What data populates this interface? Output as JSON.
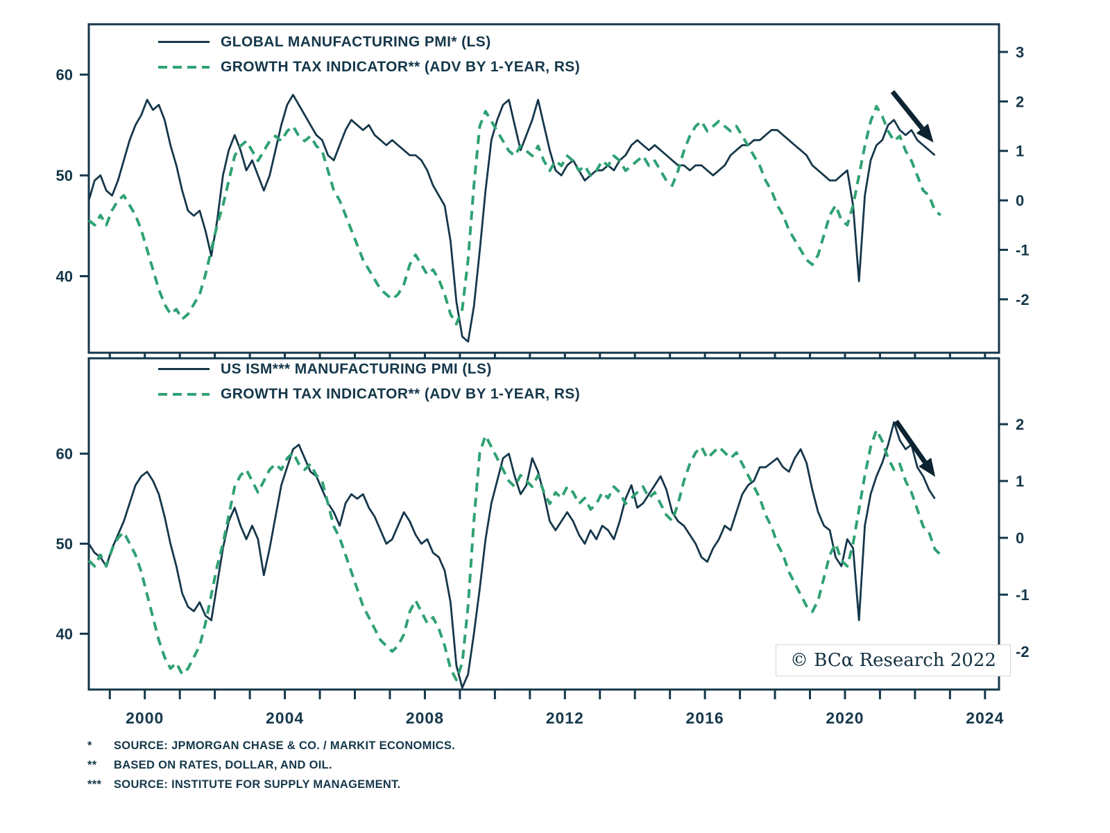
{
  "colors": {
    "frame": "#15374a",
    "dark_line": "#15374a",
    "green_line": "#2fa173",
    "arrow": "#0c2431",
    "text": "#15374a"
  },
  "watermark": {
    "text": "© BCα Research 2022"
  },
  "footnotes": [
    {
      "marker": "*",
      "text": "SOURCE: JPMORGAN CHASE & CO. / MARKIT ECONOMICS."
    },
    {
      "marker": "**",
      "text": "BASED ON RATES, DOLLAR, AND OIL."
    },
    {
      "marker": "***",
      "text": "SOURCE: INSTITUTE FOR SUPPLY MANAGEMENT."
    }
  ],
  "chart_data": [
    {
      "type": "line",
      "panel": "top",
      "title": "",
      "legend": [
        {
          "label": "GLOBAL MANUFACTURING PMI* (LS)",
          "style": "solid"
        },
        {
          "label": "GROWTH TAX INDICATOR** (ADV BY 1-YEAR, RS)",
          "style": "dashed"
        }
      ],
      "x_start": 1998.4,
      "x_step": 0.166667,
      "x_range": [
        1998.4,
        2024.4
      ],
      "left_axis": {
        "ticks": [
          60,
          50,
          40
        ],
        "range": [
          32.4,
          65.0
        ]
      },
      "right_axis": {
        "ticks": [
          3,
          2,
          1,
          0,
          -1,
          -2
        ],
        "range": [
          -3.08,
          3.56
        ]
      },
      "x_tick_labels": [],
      "arrow": {
        "fx1": 0.883,
        "fy1": 0.205,
        "fx2": 0.928,
        "fy2": 0.36
      },
      "series": [
        {
          "name": "Global Manufacturing PMI (LS)",
          "axis": "left",
          "style": "solid",
          "color": "#15374a",
          "values": [
            47.5,
            49.5,
            50.0,
            48.5,
            48.0,
            49.5,
            51.5,
            53.5,
            55.0,
            56.0,
            57.5,
            56.5,
            57.0,
            55.5,
            53.0,
            51.0,
            48.5,
            46.5,
            46.0,
            46.5,
            44.5,
            42.0,
            45.5,
            50.0,
            52.5,
            54.0,
            52.5,
            50.5,
            51.5,
            50.0,
            48.5,
            50.0,
            52.5,
            55.0,
            57.0,
            58.0,
            57.0,
            56.0,
            55.0,
            54.0,
            53.5,
            52.0,
            51.5,
            53.0,
            54.5,
            55.5,
            55.0,
            54.5,
            55.0,
            54.0,
            53.5,
            53.0,
            53.5,
            53.0,
            52.5,
            52.0,
            52.0,
            51.5,
            50.5,
            49.0,
            48.0,
            47.0,
            43.5,
            37.5,
            34.0,
            33.5,
            37.0,
            42.5,
            48.5,
            53.5,
            55.5,
            57.0,
            57.5,
            55.0,
            52.5,
            54.0,
            55.5,
            57.5,
            55.0,
            52.5,
            50.5,
            50.0,
            51.0,
            51.5,
            50.5,
            49.5,
            50.0,
            50.5,
            50.5,
            51.0,
            50.5,
            51.5,
            52.0,
            53.0,
            53.5,
            53.0,
            52.5,
            53.0,
            52.5,
            52.0,
            51.5,
            51.0,
            51.0,
            50.5,
            51.0,
            51.0,
            50.5,
            50.0,
            50.5,
            51.0,
            52.0,
            52.5,
            53.0,
            53.0,
            53.5,
            53.5,
            54.0,
            54.5,
            54.5,
            54.0,
            53.5,
            53.0,
            52.5,
            52.0,
            51.0,
            50.5,
            50.0,
            49.5,
            49.5,
            50.0,
            50.5,
            47.0,
            39.5,
            48.0,
            51.5,
            53.0,
            53.5,
            55.0,
            55.5,
            54.5,
            54.0,
            54.5,
            53.5,
            53.0,
            52.5,
            52.0
          ]
        },
        {
          "name": "Growth Tax Indicator (adv by 1-year, RS)",
          "axis": "right",
          "style": "dashed",
          "color": "#2fa173",
          "values": [
            -0.4,
            -0.5,
            -0.3,
            -0.5,
            -0.2,
            0.0,
            0.1,
            -0.1,
            -0.3,
            -0.6,
            -1.0,
            -1.4,
            -1.8,
            -2.1,
            -2.3,
            -2.2,
            -2.4,
            -2.3,
            -2.1,
            -1.9,
            -1.5,
            -1.0,
            -0.5,
            -0.1,
            0.4,
            0.9,
            1.1,
            1.2,
            1.0,
            0.8,
            1.0,
            1.2,
            1.3,
            1.2,
            1.4,
            1.5,
            1.3,
            1.2,
            1.3,
            1.1,
            1.0,
            0.6,
            0.2,
            0.0,
            -0.3,
            -0.6,
            -0.9,
            -1.2,
            -1.4,
            -1.6,
            -1.8,
            -1.9,
            -2.0,
            -1.9,
            -1.7,
            -1.3,
            -1.1,
            -1.3,
            -1.5,
            -1.4,
            -1.6,
            -1.9,
            -2.3,
            -2.5,
            -2.2,
            -1.2,
            0.3,
            1.5,
            1.8,
            1.6,
            1.4,
            1.2,
            1.0,
            0.9,
            1.1,
            1.0,
            0.9,
            1.1,
            0.8,
            0.6,
            0.8,
            0.7,
            0.9,
            0.8,
            0.6,
            0.7,
            0.5,
            0.6,
            0.8,
            0.7,
            0.9,
            0.8,
            0.6,
            0.7,
            0.8,
            0.9,
            0.7,
            0.8,
            0.6,
            0.4,
            0.3,
            0.6,
            1.0,
            1.3,
            1.5,
            1.6,
            1.4,
            1.5,
            1.6,
            1.5,
            1.4,
            1.5,
            1.3,
            1.1,
            0.9,
            0.7,
            0.4,
            0.2,
            -0.1,
            -0.3,
            -0.6,
            -0.8,
            -1.0,
            -1.2,
            -1.3,
            -1.1,
            -0.7,
            -0.3,
            -0.1,
            -0.4,
            -0.5,
            -0.1,
            0.5,
            1.1,
            1.6,
            1.9,
            1.7,
            1.4,
            1.2,
            1.3,
            1.0,
            0.8,
            0.5,
            0.2,
            0.1,
            -0.2,
            -0.3
          ]
        }
      ]
    },
    {
      "type": "line",
      "panel": "bottom",
      "title": "",
      "legend": [
        {
          "label": "US ISM*** MANUFACTURING PMI (LS)",
          "style": "solid"
        },
        {
          "label": "GROWTH TAX INDICATOR** (ADV BY 1-YEAR, RS)",
          "style": "dashed"
        }
      ],
      "x_start": 1998.4,
      "x_step": 0.166667,
      "x_range": [
        1998.4,
        2024.4
      ],
      "left_axis": {
        "ticks": [
          60,
          50,
          40
        ],
        "range": [
          33.8,
          70.6
        ]
      },
      "right_axis": {
        "ticks": [
          2,
          1,
          0,
          -1,
          -2
        ],
        "range": [
          -2.67,
          3.16
        ]
      },
      "x_tick_labels": [
        2000,
        2004,
        2008,
        2012,
        2016,
        2020,
        2024
      ],
      "arrow": {
        "fx1": 0.887,
        "fy1": 0.19,
        "fx2": 0.93,
        "fy2": 0.358
      },
      "series": [
        {
          "name": "US ISM Manufacturing PMI (LS)",
          "axis": "left",
          "style": "solid",
          "color": "#15374a",
          "values": [
            50.0,
            49.0,
            48.5,
            47.5,
            49.5,
            51.0,
            52.5,
            54.5,
            56.5,
            57.5,
            58.0,
            57.0,
            55.5,
            53.0,
            50.0,
            47.5,
            44.5,
            43.0,
            42.5,
            43.5,
            42.0,
            41.5,
            45.5,
            49.5,
            52.5,
            54.0,
            52.0,
            50.5,
            52.0,
            50.5,
            46.5,
            49.5,
            53.0,
            56.5,
            58.5,
            60.5,
            61.0,
            59.5,
            58.0,
            57.5,
            56.0,
            54.5,
            53.5,
            52.0,
            54.5,
            55.5,
            55.0,
            55.5,
            54.0,
            53.0,
            51.5,
            50.0,
            50.5,
            52.0,
            53.5,
            52.5,
            51.0,
            50.0,
            50.5,
            49.0,
            48.5,
            47.0,
            43.5,
            36.5,
            34.0,
            35.5,
            40.0,
            45.0,
            50.5,
            54.5,
            57.0,
            59.5,
            60.0,
            57.5,
            55.5,
            56.5,
            59.5,
            58.0,
            55.5,
            52.5,
            51.5,
            52.5,
            53.5,
            52.5,
            51.0,
            50.0,
            51.5,
            50.5,
            52.0,
            51.5,
            50.5,
            52.5,
            55.0,
            56.5,
            54.0,
            54.5,
            55.5,
            56.5,
            57.5,
            56.0,
            53.5,
            52.5,
            52.0,
            51.0,
            50.0,
            48.5,
            48.0,
            49.5,
            50.5,
            52.0,
            51.5,
            53.5,
            55.5,
            56.5,
            57.0,
            58.5,
            58.5,
            59.0,
            59.5,
            58.5,
            58.0,
            59.5,
            60.5,
            59.0,
            56.0,
            53.5,
            52.0,
            51.5,
            48.5,
            47.5,
            50.5,
            49.5,
            41.5,
            52.0,
            55.5,
            57.5,
            59.0,
            61.0,
            63.5,
            61.5,
            60.5,
            61.0,
            58.5,
            57.5,
            56.0,
            55.0
          ]
        },
        {
          "name": "Growth Tax Indicator (adv by 1-year, RS)",
          "axis": "right",
          "style": "dashed",
          "color": "#2fa173",
          "values": [
            -0.4,
            -0.5,
            -0.3,
            -0.5,
            -0.2,
            0.0,
            0.1,
            -0.1,
            -0.3,
            -0.6,
            -1.0,
            -1.4,
            -1.8,
            -2.1,
            -2.3,
            -2.2,
            -2.4,
            -2.3,
            -2.1,
            -1.9,
            -1.5,
            -1.0,
            -0.5,
            -0.1,
            0.4,
            0.9,
            1.1,
            1.2,
            1.0,
            0.8,
            1.0,
            1.2,
            1.3,
            1.2,
            1.4,
            1.5,
            1.3,
            1.2,
            1.3,
            1.1,
            1.0,
            0.6,
            0.2,
            0.0,
            -0.3,
            -0.6,
            -0.9,
            -1.2,
            -1.4,
            -1.6,
            -1.8,
            -1.9,
            -2.0,
            -1.9,
            -1.7,
            -1.3,
            -1.1,
            -1.3,
            -1.5,
            -1.4,
            -1.6,
            -1.9,
            -2.3,
            -2.5,
            -2.2,
            -1.2,
            0.3,
            1.5,
            1.8,
            1.6,
            1.4,
            1.2,
            1.0,
            0.9,
            1.1,
            1.0,
            0.9,
            1.1,
            0.8,
            0.6,
            0.8,
            0.7,
            0.9,
            0.8,
            0.6,
            0.7,
            0.5,
            0.6,
            0.8,
            0.7,
            0.9,
            0.8,
            0.6,
            0.7,
            0.8,
            0.9,
            0.7,
            0.8,
            0.6,
            0.4,
            0.3,
            0.6,
            1.0,
            1.3,
            1.5,
            1.6,
            1.4,
            1.5,
            1.6,
            1.5,
            1.4,
            1.5,
            1.3,
            1.1,
            0.9,
            0.7,
            0.4,
            0.2,
            -0.1,
            -0.3,
            -0.6,
            -0.8,
            -1.0,
            -1.2,
            -1.3,
            -1.1,
            -0.7,
            -0.3,
            -0.1,
            -0.4,
            -0.5,
            -0.1,
            0.5,
            1.1,
            1.6,
            1.9,
            1.7,
            1.4,
            1.2,
            1.3,
            1.0,
            0.8,
            0.5,
            0.2,
            0.1,
            -0.2,
            -0.3
          ]
        }
      ]
    }
  ]
}
